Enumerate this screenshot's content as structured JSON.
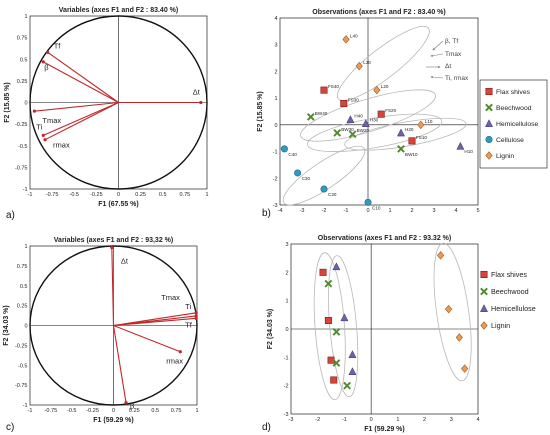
{
  "colors": {
    "vector": "#c0282a",
    "flax": "#d9443a",
    "beechwood": "#4f8a2c",
    "hemicellulose": "#7060a6",
    "cellulose": "#2f9bc3",
    "lignin": "#ee9a55",
    "ellipse": "#b8b8b8",
    "axis": "#111111"
  },
  "icons": {
    "flax": "square-marker",
    "beechwood": "x-marker",
    "hemicellulose": "triangle-marker",
    "cellulose": "circle-marker",
    "lignin": "diamond-marker"
  },
  "chart_data": [
    {
      "panel": "a)",
      "type": "scatter",
      "title": "Variables (axes F1  and  F2 : 83.40 %)",
      "xlabel": "F1 (67.55 %)",
      "ylabel": "F2 (15.85 %)",
      "xlim": [
        -1,
        1
      ],
      "ylim": [
        -1,
        1
      ],
      "xticks": [
        "-1",
        "-0.75",
        "-0.5",
        "-0.25",
        "0",
        "0.25",
        "0.5",
        "0.75",
        "1"
      ],
      "yticks": [
        "1",
        "0.75",
        "0.5",
        "0.25",
        "0",
        "-0.25",
        "-0.5",
        "-0.75",
        "-1"
      ],
      "grid": false,
      "unit_circle": true,
      "vectors": [
        {
          "name": "Tf",
          "x": -0.8,
          "y": 0.58
        },
        {
          "name": "β",
          "x": -0.85,
          "y": 0.47
        },
        {
          "name": "Tmax",
          "x": -0.95,
          "y": -0.1
        },
        {
          "name": "Ti",
          "x": -0.85,
          "y": -0.38
        },
        {
          "name": "rmax",
          "x": -0.83,
          "y": -0.43
        },
        {
          "name": "Δt",
          "x": 0.93,
          "y": 0.0
        }
      ]
    },
    {
      "panel": "b)",
      "type": "scatter",
      "title": "Observations (axes F1  and  F2 : 83.40 %)",
      "xlabel": "",
      "ylabel": "F2 (15.85 %)",
      "xlim": [
        -4,
        5
      ],
      "ylim": [
        -3,
        4
      ],
      "xticks": [
        "-4",
        "-3",
        "-2",
        "-1",
        "0",
        "1",
        "2",
        "3",
        "4",
        "5"
      ],
      "yticks": [
        "4",
        "3",
        "2",
        "1",
        "0",
        "-1",
        "-2",
        "-3"
      ],
      "grid": false,
      "annotations": [
        "β, Tf",
        "Tmax",
        "Δt",
        "Ti, rmax"
      ],
      "legend": {
        "placement": "right",
        "entries": [
          "Flax shives",
          "Beechwood",
          "Hemicellulose",
          "Cellulose",
          "Lignin"
        ]
      },
      "series": [
        {
          "name": "Flax shives",
          "points": [
            {
              "label": "FS40",
              "x": -2.0,
              "y": 1.3
            },
            {
              "label": "FS30",
              "x": -1.1,
              "y": 0.8
            },
            {
              "label": "FS20",
              "x": 0.6,
              "y": 0.4
            },
            {
              "label": "FS10",
              "x": 2.0,
              "y": -0.6
            }
          ]
        },
        {
          "name": "Beechwood",
          "points": [
            {
              "label": "BW40",
              "x": -2.6,
              "y": 0.3
            },
            {
              "label": "BW30",
              "x": -1.4,
              "y": -0.3
            },
            {
              "label": "BW20",
              "x": -0.7,
              "y": -0.35
            },
            {
              "label": "BW10",
              "x": 1.5,
              "y": -0.9
            }
          ]
        },
        {
          "name": "Hemicellulose",
          "points": [
            {
              "label": "H40",
              "x": -0.8,
              "y": 0.2
            },
            {
              "label": "H30",
              "x": -0.1,
              "y": 0.05
            },
            {
              "label": "H20",
              "x": 1.5,
              "y": -0.3
            },
            {
              "label": "H10",
              "x": 4.2,
              "y": -0.8
            }
          ]
        },
        {
          "name": "Cellulose",
          "points": [
            {
              "label": "C40",
              "x": -3.8,
              "y": -0.9
            },
            {
              "label": "C30",
              "x": -3.2,
              "y": -1.8
            },
            {
              "label": "C20",
              "x": -2.0,
              "y": -2.4
            },
            {
              "label": "C10",
              "x": 0.0,
              "y": -2.9
            }
          ]
        },
        {
          "name": "Lignin",
          "points": [
            {
              "label": "L40",
              "x": -1.0,
              "y": 3.2
            },
            {
              "label": "L30",
              "x": -0.4,
              "y": 2.2
            },
            {
              "label": "L20",
              "x": 0.4,
              "y": 1.3
            },
            {
              "label": "L10",
              "x": 2.4,
              "y": 0.0
            }
          ]
        }
      ]
    },
    {
      "panel": "c)",
      "type": "scatter",
      "title": "Variables (axes F1  and  F2 : 93,32 %)",
      "xlabel": "F1 (59.29 %)",
      "ylabel": "F2 (34.03 %)",
      "xlim": [
        -1,
        1
      ],
      "ylim": [
        -1,
        1
      ],
      "xticks": [
        "-1",
        "-0.75",
        "-0.5",
        "-0.25",
        "0",
        "0.25",
        "0.5",
        "0.75",
        "1"
      ],
      "yticks": [
        "1",
        "0.75",
        "0.5",
        "0.25",
        "0",
        "-0.25",
        "-0.5",
        "-0.75",
        "-1"
      ],
      "grid": false,
      "unit_circle": true,
      "vectors": [
        {
          "name": "Δt",
          "x": -0.02,
          "y": 0.98
        },
        {
          "name": "Tmax",
          "x": 0.99,
          "y": 0.16
        },
        {
          "name": "Ti",
          "x": 0.99,
          "y": 0.12
        },
        {
          "name": "Tf",
          "x": 0.99,
          "y": 0.09
        },
        {
          "name": "rmax",
          "x": 0.8,
          "y": -0.33
        },
        {
          "name": "β",
          "x": 0.15,
          "y": -0.97
        }
      ]
    },
    {
      "panel": "d)",
      "type": "scatter",
      "title": "Observations (axes F1  and  F2 : 93.32 %)",
      "xlabel": "F1 (59.29 %)",
      "ylabel": "F2 (34.03 %)",
      "xlim": [
        -3,
        4
      ],
      "ylim": [
        -3,
        3
      ],
      "xticks": [
        "-3",
        "-2",
        "-1",
        "0",
        "1",
        "2",
        "3",
        "4"
      ],
      "yticks": [
        "3",
        "2",
        "1",
        "0",
        "-1",
        "-2",
        "-3"
      ],
      "grid": false,
      "legend": {
        "placement": "right",
        "entries": [
          "Flax shives",
          "Beechwood",
          "Hemicellulose",
          "Lignin"
        ]
      },
      "series": [
        {
          "name": "Flax shives",
          "points": [
            {
              "x": -1.8,
              "y": 2.0
            },
            {
              "x": -1.6,
              "y": 0.3
            },
            {
              "x": -1.5,
              "y": -1.1
            },
            {
              "x": -1.4,
              "y": -1.8
            }
          ]
        },
        {
          "name": "Beechwood",
          "points": [
            {
              "x": -1.6,
              "y": 1.6
            },
            {
              "x": -1.3,
              "y": -0.1
            },
            {
              "x": -1.3,
              "y": -1.2
            },
            {
              "x": -0.9,
              "y": -2.0
            }
          ]
        },
        {
          "name": "Hemicellulose",
          "points": [
            {
              "x": -1.3,
              "y": 2.2
            },
            {
              "x": -1.0,
              "y": 0.4
            },
            {
              "x": -0.7,
              "y": -0.9
            },
            {
              "x": -0.7,
              "y": -1.5
            }
          ]
        },
        {
          "name": "Lignin",
          "points": [
            {
              "x": 2.6,
              "y": 2.6
            },
            {
              "x": 2.9,
              "y": 0.7
            },
            {
              "x": 3.3,
              "y": -0.3
            },
            {
              "x": 3.5,
              "y": -1.4
            }
          ]
        }
      ]
    }
  ]
}
